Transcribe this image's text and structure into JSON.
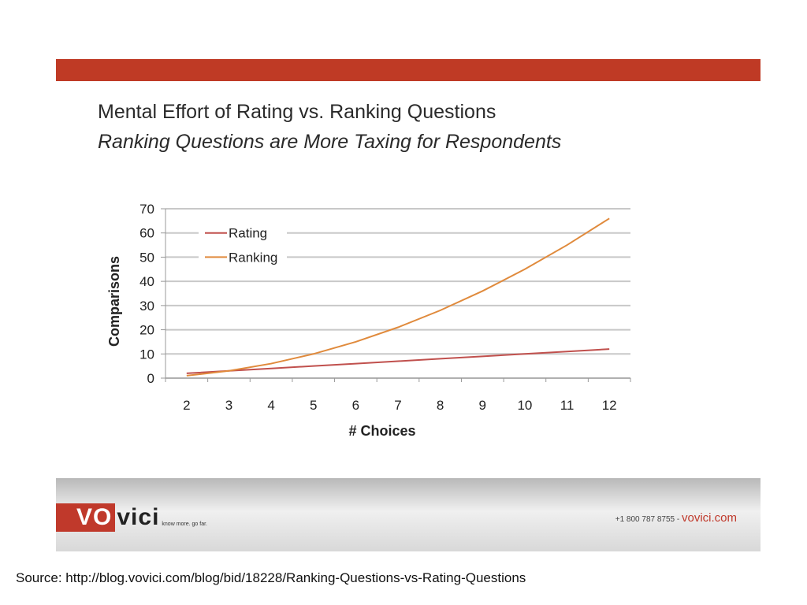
{
  "colors": {
    "header_bar": "#bf3a25",
    "rating_line": "#c0504d",
    "ranking_line": "#e08a3c",
    "grid": "#c8c8c8"
  },
  "slide": {
    "title": "Mental Effort of Rating vs. Ranking Questions",
    "subtitle": "Ranking Questions are More Taxing for Respondents"
  },
  "chart_data": {
    "type": "line",
    "title": "",
    "xlabel": "# Choices",
    "ylabel": "Comparisons",
    "x": [
      2,
      3,
      4,
      5,
      6,
      7,
      8,
      9,
      10,
      11,
      12
    ],
    "series": [
      {
        "name": "Rating",
        "values": [
          2,
          3,
          4,
          5,
          6,
          7,
          8,
          9,
          10,
          11,
          12
        ]
      },
      {
        "name": "Ranking",
        "values": [
          1,
          3,
          6,
          10,
          15,
          21,
          28,
          36,
          45,
          55,
          66
        ]
      }
    ],
    "ylim": [
      0,
      70
    ],
    "yticks": [
      0,
      10,
      20,
      30,
      40,
      50,
      60,
      70
    ],
    "grid": true,
    "legend_position": "top-left"
  },
  "footer": {
    "logo_part1": "VO",
    "logo_part2": "vici",
    "tagline": "know more. go far.",
    "phone": "+1 800 787 8755",
    "separator": " - ",
    "website": "vovici.com"
  },
  "source_text": "Source:  http://blog.vovici.com/blog/bid/18228/Ranking-Questions-vs-Rating-Questions"
}
